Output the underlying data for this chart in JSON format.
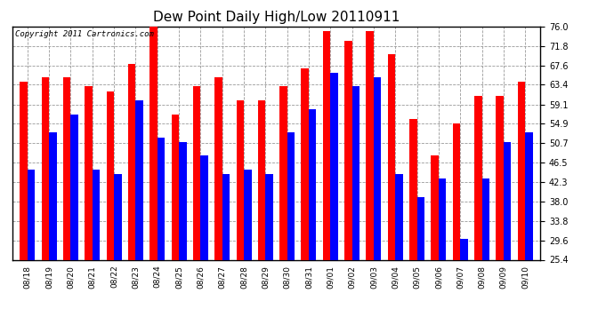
{
  "title": "Dew Point Daily High/Low 20110911",
  "copyright": "Copyright 2011 Cartronics.com",
  "dates": [
    "08/18",
    "08/19",
    "08/20",
    "08/21",
    "08/22",
    "08/23",
    "08/24",
    "08/25",
    "08/26",
    "08/27",
    "08/28",
    "08/29",
    "08/30",
    "08/31",
    "09/01",
    "09/02",
    "09/03",
    "09/04",
    "09/05",
    "09/06",
    "09/07",
    "09/08",
    "09/09",
    "09/10"
  ],
  "highs": [
    64,
    65,
    65,
    63,
    62,
    68,
    76,
    57,
    63,
    65,
    60,
    60,
    63,
    67,
    75,
    73,
    75,
    70,
    56,
    48,
    55,
    61,
    61,
    64
  ],
  "lows": [
    45,
    53,
    57,
    45,
    44,
    60,
    52,
    51,
    48,
    44,
    45,
    44,
    53,
    58,
    66,
    63,
    65,
    44,
    39,
    43,
    30,
    43,
    51,
    53
  ],
  "high_color": "#ff0000",
  "low_color": "#0000ff",
  "bg_color": "#ffffff",
  "plot_bg_color": "#ffffff",
  "grid_color": "#999999",
  "ymin": 25.4,
  "ymax": 76.0,
  "yticks": [
    25.4,
    29.6,
    33.8,
    38.0,
    42.3,
    46.5,
    50.7,
    54.9,
    59.1,
    63.4,
    67.6,
    71.8,
    76.0
  ],
  "title_fontsize": 11,
  "copyright_fontsize": 6.5,
  "bar_width": 0.35
}
